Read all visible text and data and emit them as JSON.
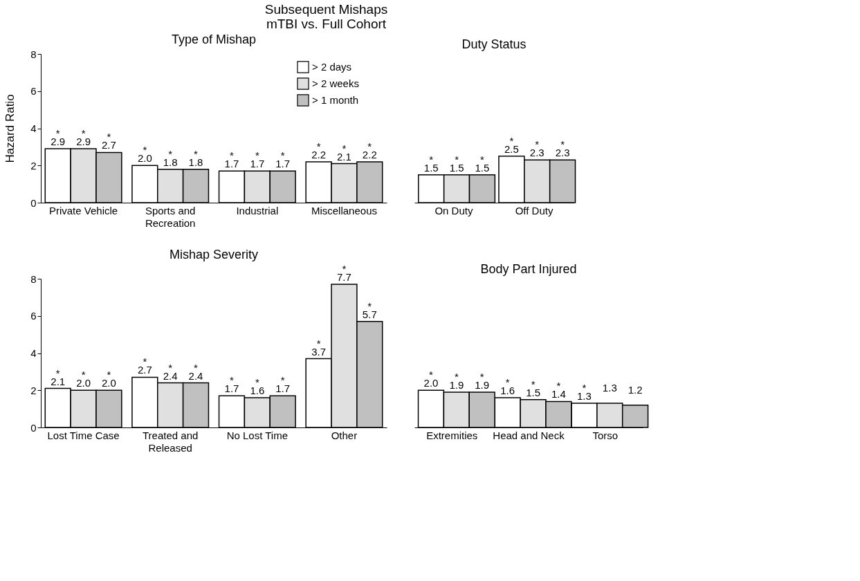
{
  "chart_data": [
    {
      "type": "bar",
      "title": "Type of Mishap",
      "ylabel": "Hazard Ratio",
      "annotations": [
        "Subsequent Mishaps",
        "mTBI vs. Full Cohort"
      ],
      "categories": [
        "Private Vehicle",
        "Sports and\nRecreation",
        "Industrial",
        "Miscellaneous"
      ],
      "series": [
        {
          "name": "> 2 days",
          "color": "#ffffff",
          "values": [
            2.9,
            2.0,
            1.7,
            2.2
          ],
          "value_labels": [
            "*\n2.9",
            "*\n2.0",
            "*\n1.7",
            "*\n2.2"
          ]
        },
        {
          "name": "> 2 weeks",
          "color": "#e0e0e0",
          "values": [
            2.9,
            1.8,
            1.7,
            2.1
          ],
          "value_labels": [
            "*\n2.9",
            "*\n1.8",
            "*\n1.7",
            "*\n2.1"
          ]
        },
        {
          "name": "> 1 month",
          "color": "#c0c0c0",
          "values": [
            2.7,
            1.8,
            1.7,
            2.2
          ],
          "value_labels": [
            "*\n2.7",
            "*\n1.8",
            "*\n1.7",
            "*\n2.2"
          ]
        }
      ],
      "ylim": [
        0,
        8
      ],
      "yticks": [
        0,
        2,
        4,
        6,
        8
      ],
      "legend": "top right",
      "grid": false
    },
    {
      "type": "bar",
      "title": "Duty Status",
      "categories": [
        "On Duty",
        "Off Duty"
      ],
      "series": [
        {
          "color": "#ffffff",
          "values": [
            1.5,
            2.5
          ],
          "value_labels": [
            "*\n1.5",
            "*\n2.5"
          ]
        },
        {
          "color": "#e0e0e0",
          "values": [
            1.5,
            2.3
          ],
          "value_labels": [
            "*\n1.5",
            "*\n2.3"
          ]
        },
        {
          "color": "#c0c0c0",
          "values": [
            1.5,
            2.3
          ],
          "value_labels": [
            "*\n1.5",
            "*\n2.3"
          ]
        }
      ],
      "ylim": [
        0,
        8
      ],
      "tick_labels": "x",
      "grid": false
    },
    {
      "type": "bar",
      "title": "Mishap Severity",
      "categories": [
        "Lost Time Case",
        "Treated and\nReleased",
        "No Lost Time",
        "Other"
      ],
      "series": [
        {
          "color": "#ffffff",
          "values": [
            2.1,
            2.7,
            1.7,
            3.7
          ],
          "value_labels": [
            "*\n2.1",
            "*\n2.7",
            "*\n1.7",
            "*\n3.7"
          ]
        },
        {
          "color": "#e0e0e0",
          "values": [
            2.0,
            2.4,
            1.6,
            7.7
          ],
          "value_labels": [
            "*\n2.0",
            "*\n2.4",
            "*\n1.6",
            "*\n7.7"
          ]
        },
        {
          "color": "#c0c0c0",
          "values": [
            2.0,
            2.4,
            1.7,
            5.7
          ],
          "value_labels": [
            "*\n2.0",
            "*\n2.4",
            "*\n1.7",
            "*\n5.7"
          ]
        }
      ],
      "ylim": [
        0,
        8
      ],
      "yticks": [
        0,
        2,
        4,
        6,
        8
      ],
      "grid": false
    },
    {
      "type": "bar",
      "title": "Body Part Injured",
      "categories": [
        "Extremities",
        "Head and Neck",
        "Torso"
      ],
      "series": [
        {
          "color": "#ffffff",
          "values": [
            2.0,
            1.6,
            1.3
          ],
          "value_labels": [
            "*\n2.0",
            "*\n1.6",
            "*\n1.3"
          ]
        },
        {
          "color": "#e0e0e0",
          "values": [
            1.9,
            1.5,
            1.3
          ],
          "value_labels": [
            "*\n1.9",
            "*\n1.5",
            "1.3"
          ]
        },
        {
          "color": "#c0c0c0",
          "values": [
            1.9,
            1.4,
            1.2
          ],
          "value_labels": [
            "*\n1.9",
            "*\n1.4",
            "1.2"
          ]
        }
      ],
      "ylim": [
        0,
        8
      ],
      "tick_labels": "x",
      "grid": false
    }
  ]
}
